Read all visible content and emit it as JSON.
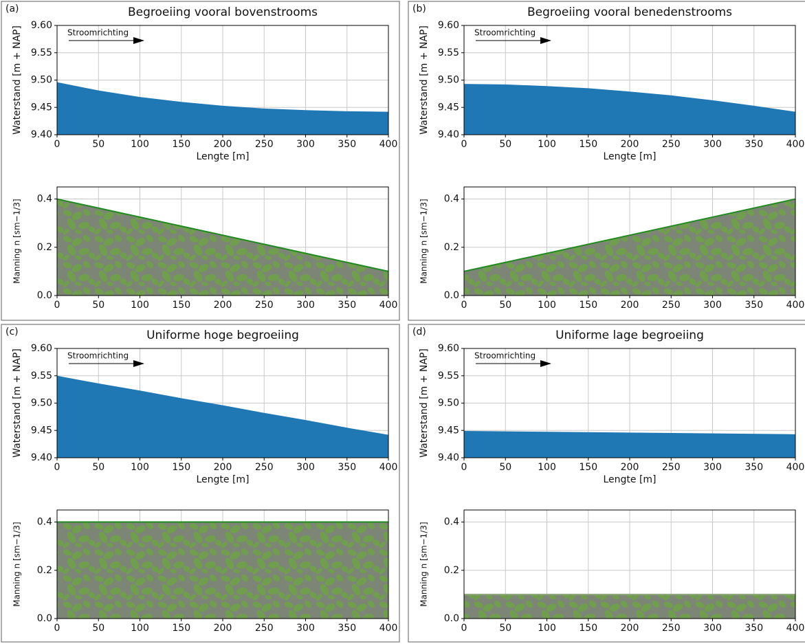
{
  "chart_data": [
    {
      "type": "area",
      "panel": "(a)",
      "title": "Begroeiing vooral bovenstrooms",
      "annotation": "Stroomrichting",
      "x": [
        0,
        50,
        100,
        150,
        200,
        250,
        300,
        350,
        400
      ],
      "values": [
        9.496,
        9.481,
        9.469,
        9.46,
        9.453,
        9.448,
        9.445,
        9.443,
        9.442
      ],
      "color": "#1f77b4",
      "xlabel": "Lengte [m]",
      "ylabel": "Waterstand [m + NAP]",
      "xlim": [
        0,
        400
      ],
      "ylim": [
        9.4,
        9.6
      ],
      "xticks": [
        0,
        50,
        100,
        150,
        200,
        250,
        300,
        350,
        400
      ],
      "yticks": [
        {
          "value": 9.4,
          "label": "9.40"
        },
        9.45,
        {
          "value": 9.5,
          "label": "9.50"
        },
        9.55,
        {
          "value": 9.6,
          "label": "9.60"
        }
      ],
      "grid": true
    },
    {
      "type": "area",
      "x": [
        0,
        400
      ],
      "values": [
        0.4,
        0.1
      ],
      "color": "#6f9e4c",
      "edge_color": "#1f8a1f",
      "ylabel": "Manning n [sm−1/3]",
      "xlim": [
        0,
        400
      ],
      "ylim": [
        0,
        0.45
      ],
      "xticks": [
        0,
        50,
        100,
        150,
        200,
        250,
        300,
        350,
        400
      ],
      "yticks": [
        {
          "value": 0,
          "label": "0.0"
        },
        0.2,
        0.4
      ],
      "grid": true
    },
    {
      "type": "area",
      "panel": "(b)",
      "title": "Begroeiing vooral benedenstrooms",
      "annotation": "Stroomrichting",
      "x": [
        0,
        50,
        100,
        150,
        200,
        250,
        300,
        350,
        400
      ],
      "values": [
        9.493,
        9.492,
        9.489,
        9.485,
        9.479,
        9.472,
        9.463,
        9.453,
        9.442
      ],
      "color": "#1f77b4",
      "xlabel": "Lengte [m]",
      "ylabel": "Waterstand [m + NAP]",
      "xlim": [
        0,
        400
      ],
      "ylim": [
        9.4,
        9.6
      ],
      "xticks": [
        0,
        50,
        100,
        150,
        200,
        250,
        300,
        350,
        400
      ],
      "yticks": [
        {
          "value": 9.4,
          "label": "9.40"
        },
        9.45,
        {
          "value": 9.5,
          "label": "9.50"
        },
        9.55,
        {
          "value": 9.6,
          "label": "9.60"
        }
      ],
      "grid": true
    },
    {
      "type": "area",
      "x": [
        0,
        400
      ],
      "values": [
        0.1,
        0.4
      ],
      "color": "#6f9e4c",
      "edge_color": "#1f8a1f",
      "ylabel": "Manning n [sm−1/3]",
      "xlim": [
        0,
        400
      ],
      "ylim": [
        0,
        0.45
      ],
      "xticks": [
        0,
        50,
        100,
        150,
        200,
        250,
        300,
        350,
        400
      ],
      "yticks": [
        {
          "value": 0,
          "label": "0.0"
        },
        0.2,
        0.4
      ],
      "grid": true
    },
    {
      "type": "area",
      "panel": "(c)",
      "title": "Uniforme hoge begroeiing",
      "annotation": "Stroomrichting",
      "x": [
        0,
        50,
        100,
        150,
        200,
        250,
        300,
        350,
        400
      ],
      "values": [
        9.55,
        9.536,
        9.523,
        9.509,
        9.496,
        9.482,
        9.469,
        9.455,
        9.442
      ],
      "color": "#1f77b4",
      "xlabel": "Lengte [m]",
      "ylabel": "Waterstand [m + NAP]",
      "xlim": [
        0,
        400
      ],
      "ylim": [
        9.4,
        9.6
      ],
      "xticks": [
        0,
        50,
        100,
        150,
        200,
        250,
        300,
        350,
        400
      ],
      "yticks": [
        {
          "value": 9.4,
          "label": "9.40"
        },
        9.45,
        {
          "value": 9.5,
          "label": "9.50"
        },
        9.55,
        {
          "value": 9.6,
          "label": "9.60"
        }
      ],
      "grid": true
    },
    {
      "type": "area",
      "x": [
        0,
        400
      ],
      "values": [
        0.4,
        0.4
      ],
      "color": "#6f9e4c",
      "edge_color": "#1f8a1f",
      "ylabel": "Manning n [sm−1/3]",
      "xlim": [
        0,
        400
      ],
      "ylim": [
        0,
        0.45
      ],
      "xticks": [
        0,
        50,
        100,
        150,
        200,
        250,
        300,
        350,
        400
      ],
      "yticks": [
        {
          "value": 0,
          "label": "0.0"
        },
        0.2,
        0.4
      ],
      "grid": true
    },
    {
      "type": "area",
      "panel": "(d)",
      "title": "Uniforme lage begroeiing",
      "annotation": "Stroomrichting",
      "x": [
        0,
        400
      ],
      "values": [
        9.449,
        9.443
      ],
      "color": "#1f77b4",
      "xlabel": "Lengte [m]",
      "ylabel": "Waterstand [m + NAP]",
      "xlim": [
        0,
        400
      ],
      "ylim": [
        9.4,
        9.6
      ],
      "xticks": [
        0,
        50,
        100,
        150,
        200,
        250,
        300,
        350,
        400
      ],
      "yticks": [
        {
          "value": 9.4,
          "label": "9.40"
        },
        9.45,
        {
          "value": 9.5,
          "label": "9.50"
        },
        9.55,
        {
          "value": 9.6,
          "label": "9.60"
        }
      ],
      "grid": true
    },
    {
      "type": "area",
      "x": [
        0,
        400
      ],
      "values": [
        0.1,
        0.1
      ],
      "color": "#6f9e4c",
      "edge_color": "#8fa87a",
      "ylabel": "Manning n [sm−1/3]",
      "xlim": [
        0,
        400
      ],
      "ylim": [
        0,
        0.45
      ],
      "xticks": [
        0,
        50,
        100,
        150,
        200,
        250,
        300,
        350,
        400
      ],
      "yticks": [
        {
          "value": 0,
          "label": "0.0"
        },
        0.2,
        0.4
      ],
      "grid": true
    }
  ]
}
